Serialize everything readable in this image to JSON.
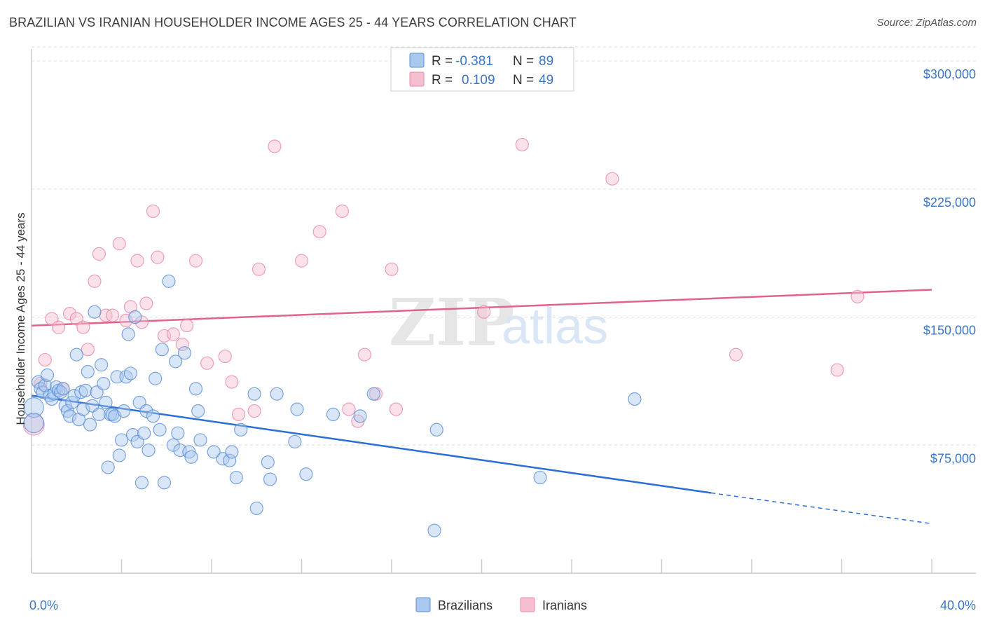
{
  "title": "BRAZILIAN VS IRANIAN HOUSEHOLDER INCOME AGES 25 - 44 YEARS CORRELATION CHART",
  "source": "Source: ZipAtlas.com",
  "watermark": {
    "zip": "ZIP",
    "atlas": "atlas"
  },
  "colors": {
    "brazilians_fill": "#a9c8ef",
    "brazilians_stroke": "#5b8fd6",
    "brazilians_line": "#2a6fd4",
    "iranians_fill": "#f6bfd1",
    "iranians_stroke": "#e889a8",
    "iranians_line": "#e0628f",
    "tick_text": "#3b76c5",
    "grid": "#dddddd"
  },
  "legend": {
    "rows": [
      {
        "r_label": "R =",
        "r_value": "-0.381",
        "n_label": "N =",
        "n_value": "89"
      },
      {
        "r_label": "R =",
        "r_value": "0.109",
        "n_label": "N =",
        "n_value": "49"
      }
    ]
  },
  "chart_data": {
    "type": "scatter",
    "title": "BRAZILIAN VS IRANIAN HOUSEHOLDER INCOME AGES 25 - 44 YEARS CORRELATION CHART",
    "xlabel": "",
    "ylabel": "Householder Income Ages 25 - 44 years",
    "xlim": [
      0,
      40
    ],
    "ylim": [
      0,
      307000
    ],
    "x_tick_labels": [
      "0.0%",
      "40.0%"
    ],
    "y_ticks": [
      75000,
      150000,
      225000,
      300000
    ],
    "y_tick_labels": [
      "$75,000",
      "$150,000",
      "$225,000",
      "$300,000"
    ],
    "grid": true,
    "legend_position": "top-center",
    "series": [
      {
        "name": "Brazilians",
        "r": -0.381,
        "n": 89,
        "trend": {
          "x0": 0,
          "y0": 104000,
          "x1": 30.2,
          "y1": 47000,
          "dash_to_x": 40,
          "dash_to_y": 29000
        },
        "points": [
          [
            0.1,
            97000,
            14
          ],
          [
            0.1,
            88000,
            14
          ],
          [
            0.3,
            112000,
            9
          ],
          [
            0.4,
            108000,
            9
          ],
          [
            0.5,
            106000,
            9
          ],
          [
            0.6,
            110000,
            9
          ],
          [
            0.7,
            116000,
            9
          ],
          [
            0.8,
            104000,
            9
          ],
          [
            0.9,
            102000,
            9
          ],
          [
            1.0,
            105000,
            9
          ],
          [
            1.1,
            109000,
            9
          ],
          [
            1.2,
            107000,
            9
          ],
          [
            1.3,
            106000,
            9
          ],
          [
            1.4,
            108000,
            9
          ],
          [
            1.5,
            98000,
            9
          ],
          [
            1.6,
            95000,
            9
          ],
          [
            1.7,
            92000,
            9
          ],
          [
            1.8,
            100000,
            9
          ],
          [
            1.9,
            104000,
            9
          ],
          [
            2.0,
            128000,
            9
          ],
          [
            2.1,
            90000,
            9
          ],
          [
            2.2,
            106000,
            9
          ],
          [
            2.3,
            96000,
            9
          ],
          [
            2.4,
            107000,
            9
          ],
          [
            2.5,
            118000,
            9
          ],
          [
            2.6,
            87000,
            9
          ],
          [
            2.7,
            98000,
            9
          ],
          [
            2.8,
            153000,
            9
          ],
          [
            2.9,
            106000,
            9
          ],
          [
            3.0,
            93000,
            9
          ],
          [
            3.1,
            122000,
            9
          ],
          [
            3.2,
            111000,
            9
          ],
          [
            3.3,
            100000,
            9
          ],
          [
            3.4,
            62000,
            9
          ],
          [
            3.5,
            93000,
            9
          ],
          [
            3.6,
            93000,
            9
          ],
          [
            3.7,
            92000,
            9
          ],
          [
            3.8,
            115000,
            9
          ],
          [
            3.9,
            69000,
            9
          ],
          [
            4.0,
            78000,
            9
          ],
          [
            4.1,
            95000,
            9
          ],
          [
            4.2,
            115000,
            9
          ],
          [
            4.3,
            140000,
            9
          ],
          [
            4.4,
            117000,
            9
          ],
          [
            4.5,
            81000,
            9
          ],
          [
            4.6,
            150000,
            9
          ],
          [
            4.7,
            77000,
            9
          ],
          [
            4.8,
            100000,
            9
          ],
          [
            4.9,
            53000,
            9
          ],
          [
            5.0,
            82000,
            9
          ],
          [
            5.1,
            95000,
            9
          ],
          [
            5.2,
            72000,
            9
          ],
          [
            5.4,
            92000,
            9
          ],
          [
            5.5,
            114000,
            9
          ],
          [
            5.7,
            84000,
            9
          ],
          [
            5.8,
            131000,
            9
          ],
          [
            5.9,
            53000,
            9
          ],
          [
            6.1,
            171000,
            9
          ],
          [
            6.3,
            75000,
            9
          ],
          [
            6.4,
            124000,
            9
          ],
          [
            6.5,
            82000,
            9
          ],
          [
            6.6,
            72000,
            9
          ],
          [
            6.8,
            129000,
            9
          ],
          [
            7.0,
            71000,
            9
          ],
          [
            7.1,
            68000,
            9
          ],
          [
            7.3,
            108000,
            9
          ],
          [
            7.4,
            95000,
            9
          ],
          [
            7.5,
            78000,
            9
          ],
          [
            8.1,
            71000,
            9
          ],
          [
            8.5,
            67000,
            9
          ],
          [
            8.8,
            66000,
            9
          ],
          [
            8.9,
            71000,
            9
          ],
          [
            9.1,
            56000,
            9
          ],
          [
            9.3,
            84000,
            9
          ],
          [
            9.9,
            105000,
            9
          ],
          [
            10.0,
            38000,
            9
          ],
          [
            10.5,
            65000,
            9
          ],
          [
            10.6,
            55000,
            9
          ],
          [
            10.9,
            105000,
            9
          ],
          [
            11.7,
            77000,
            9
          ],
          [
            11.8,
            96000,
            9
          ],
          [
            12.2,
            58000,
            9
          ],
          [
            13.4,
            93000,
            9
          ],
          [
            14.6,
            92000,
            9
          ],
          [
            15.2,
            105000,
            9
          ],
          [
            17.9,
            25000,
            9
          ],
          [
            18.0,
            84000,
            9
          ],
          [
            22.6,
            56000,
            9
          ],
          [
            26.8,
            102000,
            9
          ]
        ]
      },
      {
        "name": "Iranians",
        "r": 0.109,
        "n": 49,
        "trend": {
          "x0": 0,
          "y0": 145000,
          "x1": 40,
          "y1": 166000
        },
        "points": [
          [
            0.1,
            87000,
            15
          ],
          [
            0.4,
            111000,
            9
          ],
          [
            0.6,
            125000,
            9
          ],
          [
            0.9,
            149000,
            9
          ],
          [
            1.2,
            144000,
            9
          ],
          [
            1.4,
            108000,
            9
          ],
          [
            1.7,
            152000,
            9
          ],
          [
            2.0,
            149000,
            9
          ],
          [
            2.3,
            144000,
            9
          ],
          [
            2.5,
            131000,
            9
          ],
          [
            2.8,
            171000,
            9
          ],
          [
            3.0,
            187000,
            9
          ],
          [
            3.3,
            151000,
            9
          ],
          [
            3.6,
            151000,
            9
          ],
          [
            3.9,
            193000,
            9
          ],
          [
            4.2,
            148000,
            9
          ],
          [
            4.4,
            156000,
            9
          ],
          [
            4.7,
            183000,
            9
          ],
          [
            4.9,
            147000,
            9
          ],
          [
            5.1,
            158000,
            9
          ],
          [
            5.4,
            212000,
            9
          ],
          [
            5.6,
            185000,
            9
          ],
          [
            5.9,
            139000,
            9
          ],
          [
            6.3,
            140000,
            9
          ],
          [
            6.7,
            134000,
            9
          ],
          [
            6.9,
            145000,
            9
          ],
          [
            7.3,
            183000,
            9
          ],
          [
            7.8,
            123000,
            9
          ],
          [
            8.6,
            127000,
            9
          ],
          [
            8.9,
            112000,
            9
          ],
          [
            9.2,
            93000,
            9
          ],
          [
            9.9,
            95000,
            9
          ],
          [
            10.1,
            178000,
            9
          ],
          [
            10.8,
            250000,
            9
          ],
          [
            12.0,
            183000,
            9
          ],
          [
            12.8,
            200000,
            9
          ],
          [
            13.8,
            212000,
            9
          ],
          [
            14.1,
            96000,
            9
          ],
          [
            14.5,
            89000,
            9
          ],
          [
            14.8,
            128000,
            9
          ],
          [
            15.3,
            105000,
            9
          ],
          [
            16.0,
            178000,
            9
          ],
          [
            16.2,
            96000,
            9
          ],
          [
            20.1,
            153000,
            9
          ],
          [
            21.8,
            251000,
            9
          ],
          [
            25.8,
            231000,
            9
          ],
          [
            31.3,
            128000,
            9
          ],
          [
            35.8,
            119000,
            9
          ],
          [
            36.7,
            162000,
            9
          ]
        ]
      }
    ]
  },
  "bottom_legend": [
    {
      "label": "Brazilians"
    },
    {
      "label": "Iranians"
    }
  ]
}
